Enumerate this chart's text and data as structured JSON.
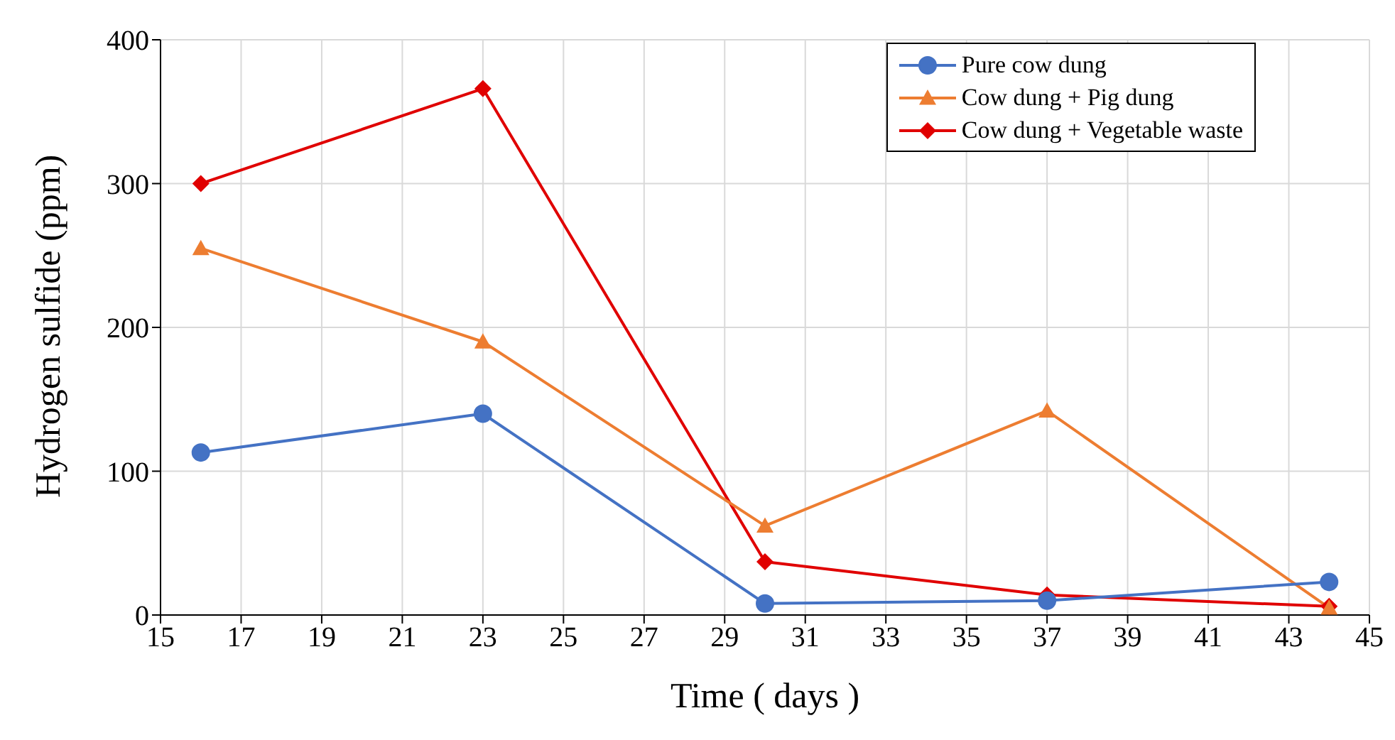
{
  "chart_data": {
    "type": "line",
    "xlabel": "Time ( days )",
    "ylabel": "Hydrogen sulfide (ppm)",
    "x": [
      16,
      23,
      30,
      37,
      44
    ],
    "series": [
      {
        "name": "Pure cow dung",
        "color": "#4472c4",
        "marker": "circle",
        "values": [
          113,
          140,
          8,
          10,
          23
        ]
      },
      {
        "name": "Cow dung + Pig dung",
        "color": "#ed7d31",
        "marker": "triangle",
        "values": [
          255,
          190,
          62,
          142,
          5
        ]
      },
      {
        "name": "Cow dung + Vegetable waste",
        "color": "#e00000",
        "marker": "diamond",
        "values": [
          300,
          366,
          37,
          14,
          6
        ]
      }
    ],
    "xlim": [
      15,
      45
    ],
    "xticks": [
      15,
      17,
      19,
      21,
      23,
      25,
      27,
      29,
      31,
      33,
      35,
      37,
      39,
      41,
      43,
      45
    ],
    "ylim": [
      0,
      400
    ],
    "yticks": [
      0,
      100,
      200,
      300,
      400
    ],
    "grid": true,
    "legend": "top right",
    "line_style": "solid"
  }
}
